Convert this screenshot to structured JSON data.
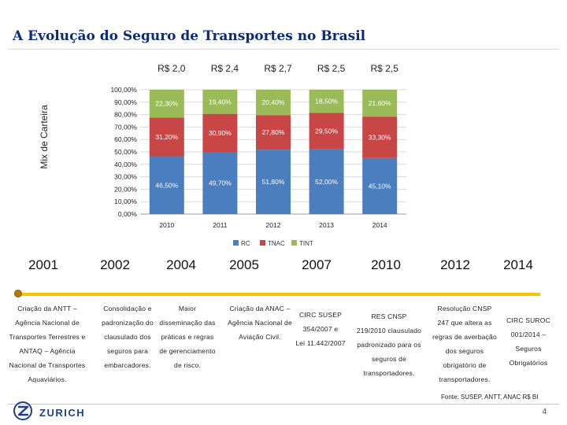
{
  "title": "A Evolução do Seguro de Transportes no Brasil",
  "ylabel": "Mix de Carteira",
  "chart_data": {
    "type": "bar",
    "stacked": true,
    "categories": [
      "2010",
      "2011",
      "2012",
      "2013",
      "2014"
    ],
    "top_labels": [
      "R$ 2,0",
      "R$ 2,4",
      "R$ 2,7",
      "R$ 2,5",
      "R$ 2,5"
    ],
    "series": [
      {
        "name": "RC",
        "color": "#4a7ebf",
        "values": [
          46.5,
          49.7,
          51.8,
          52.0,
          45.1
        ],
        "labels": [
          "46,50%",
          "49,70%",
          "51,80%",
          "52,00%",
          "45,10%"
        ]
      },
      {
        "name": "TNAC",
        "color": "#c84646",
        "values": [
          31.2,
          30.9,
          27.8,
          29.5,
          33.3
        ],
        "labels": [
          "31,20%",
          "30,90%",
          "27,80%",
          "29,50%",
          "33,30%"
        ]
      },
      {
        "name": "TINT",
        "color": "#9bbb59",
        "values": [
          22.3,
          19.4,
          20.4,
          18.5,
          21.6
        ],
        "labels": [
          "22,30%",
          "19,40%",
          "20,40%",
          "18,50%",
          "21,60%"
        ]
      }
    ],
    "yticks": [
      "0,00%",
      "10,00%",
      "20,00%",
      "30,00%",
      "40,00%",
      "50,00%",
      "60,00%",
      "70,00%",
      "80,00%",
      "90,00%",
      "100,00%"
    ],
    "ylim": [
      0,
      100
    ],
    "legend": "bottom"
  },
  "timeline": {
    "years": [
      "2001",
      "2002",
      "2004",
      "2005",
      "2007",
      "2010",
      "2012",
      "2014"
    ],
    "events": [
      "Criação da ANTT –\nAgência Nacional de\nTransportes Terrestres e\nANTAQ – Agência\nNacional de Transportes\nAquaviários.",
      "Consolidação e\npadronização do\nclausulado dos\nseguros para\nembarcadores.",
      "Maior\ndisseminação das\npráticas e regras\nde gerenciamento\nde risco.",
      "Criação da ANAC –\nAgência Nacional de\nAviação Civil.",
      "CIRC SUSEP\n354/2007 e\nLei 11.442/2007",
      "RES CNSP\n219/2010 clausulado\npadronizado para os\nseguros de\ntransportadores.",
      "Resolução CNSP\n247 que altera as\nregras de averbação\ndos seguros\nobrigatório de\ntransportadores.",
      "CIRC SUROC\n001/2014 –\nSeguros\nObrigatórios"
    ]
  },
  "source": "Fonte: SUSEP, ANTT, ANAC R$ BI",
  "page_number": "4",
  "logo_text": "ZURICH"
}
